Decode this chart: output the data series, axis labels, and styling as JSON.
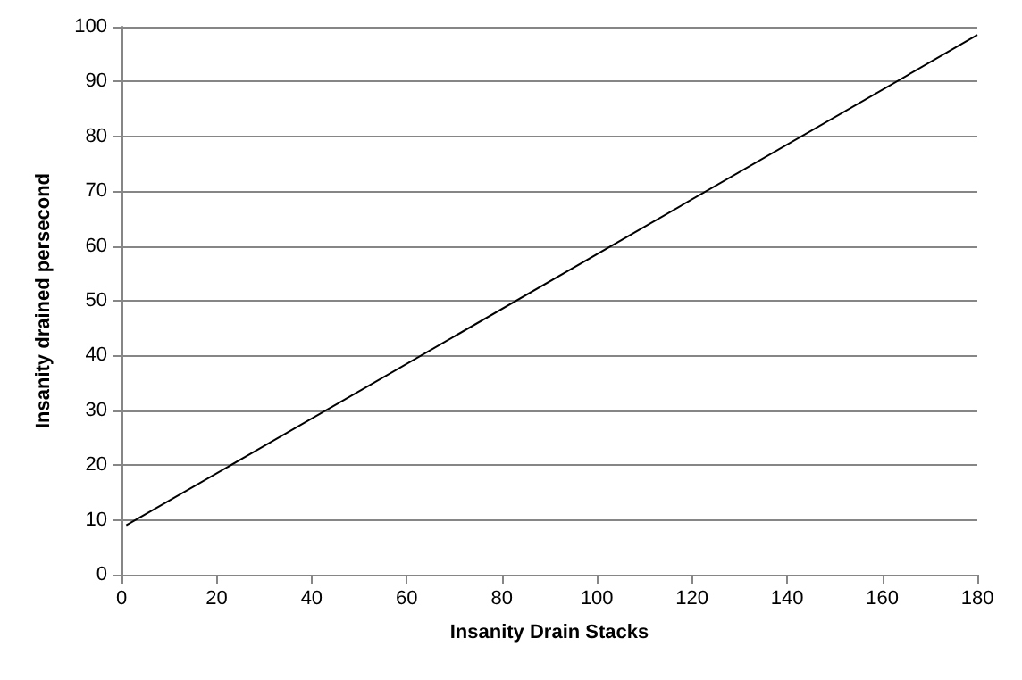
{
  "chart_data": {
    "type": "line",
    "xlabel": "Insanity Drain Stacks",
    "ylabel": "Insanity drained persecond",
    "series": [
      {
        "color": "#000000",
        "x": [
          1,
          180
        ],
        "values": [
          9,
          98.5
        ]
      }
    ],
    "xlim": [
      0,
      180
    ],
    "xticks": [
      0,
      20,
      40,
      60,
      80,
      100,
      120,
      140,
      160,
      180
    ],
    "ylim": [
      0,
      100
    ],
    "yticks": [
      0,
      10,
      20,
      30,
      40,
      50,
      60,
      70,
      80,
      90,
      100
    ],
    "grid": "y",
    "marker": "none",
    "line_style": "solid"
  }
}
